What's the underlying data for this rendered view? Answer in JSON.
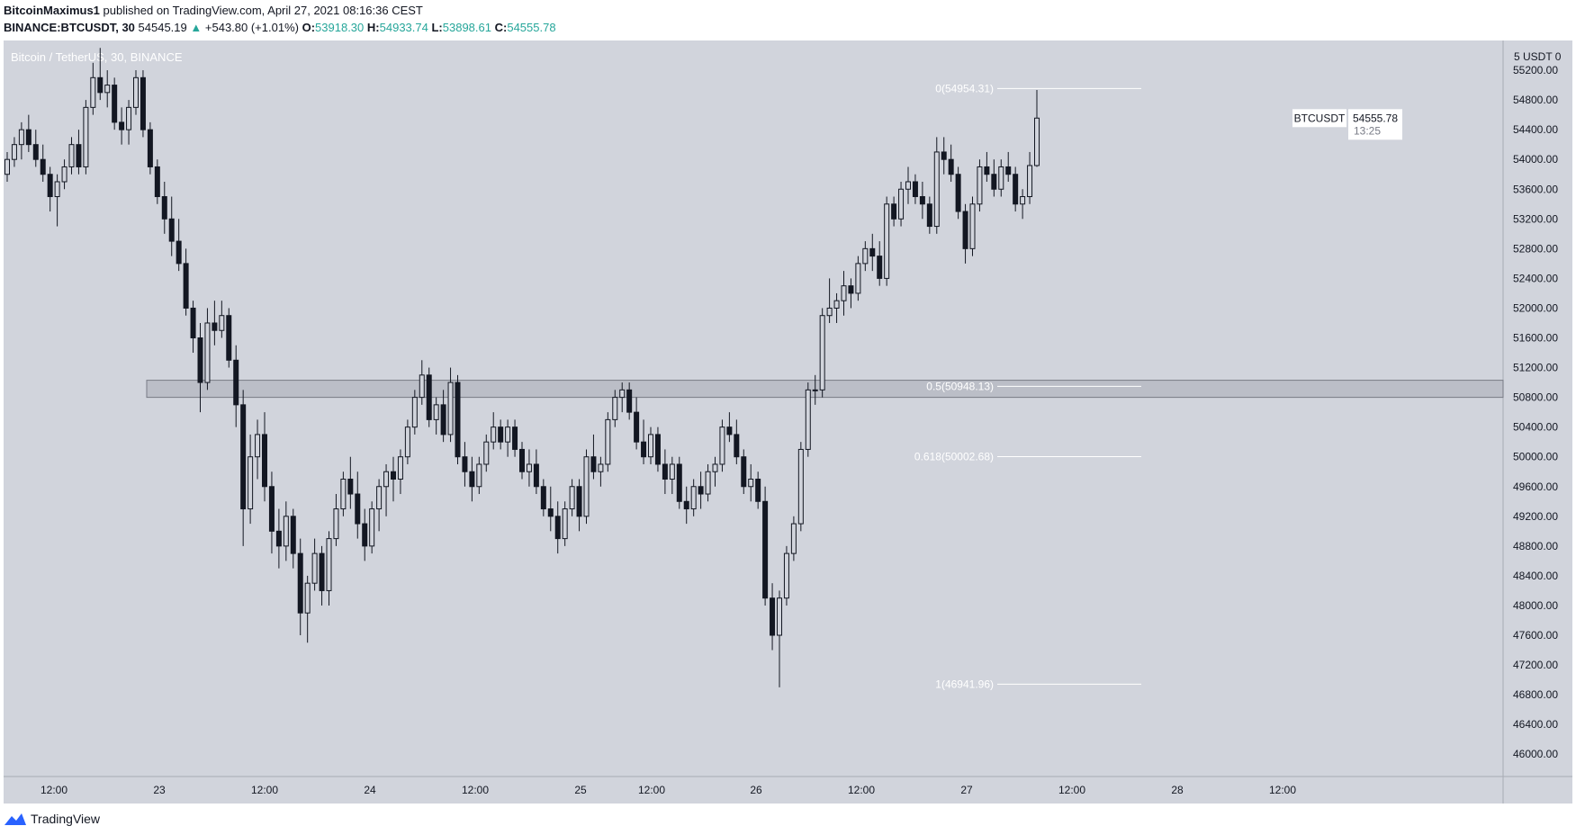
{
  "header": {
    "line1_user": "BitcoinMaximus1",
    "line1_text": "published on TradingView.com, April 27, 2021 08:16:36 CEST",
    "symbol": "BINANCE:BTCUSDT, 30",
    "last": "54545.19",
    "change_arrow": "▲",
    "change": "+543.80 (+1.01%)",
    "o_label": "O:",
    "o_val": "53918.30",
    "h_label": "H:",
    "h_val": "54933.74",
    "l_label": "L:",
    "l_val": "53898.61",
    "c_label": "C:",
    "c_val": "54555.78"
  },
  "footer": {
    "brand": "TradingView"
  },
  "colors": {
    "plot_bg": "#d1d4dc",
    "candle": "#131722",
    "up_text": "#26a69a",
    "fib_line": "#ffffff",
    "zone": "#b2b5be"
  },
  "chart_data": {
    "type": "candlestick",
    "title": "Bitcoin / TetherUS, 30, BINANCE",
    "ylim": [
      45700,
      55600
    ],
    "y_ticks": [
      46000,
      46400,
      46800,
      47200,
      47600,
      48000,
      48400,
      48800,
      49200,
      49600,
      50000,
      50400,
      50800,
      51200,
      51600,
      52000,
      52400,
      52800,
      53200,
      53600,
      54000,
      54400,
      54800,
      55200
    ],
    "y_unit_label": "5 USDT 0",
    "x_ticks": [
      "12:00",
      "23",
      "12:00",
      "24",
      "12:00",
      "25",
      "12:00",
      "26",
      "12:00",
      "27",
      "12:00",
      "28",
      "12:00"
    ],
    "last_price_label": {
      "symbol": "BTCUSDT",
      "price": "54555.78",
      "countdown": "13:25"
    },
    "fib_levels": [
      {
        "label": "0(54954.31)",
        "value": 54954.31
      },
      {
        "label": "0.5(50948.13)",
        "value": 50948.13
      },
      {
        "label": "0.618(50002.68)",
        "value": 50002.68
      },
      {
        "label": "1(46941.96)",
        "value": 46941.96
      }
    ],
    "zone": {
      "low": 50800,
      "high": 51030
    },
    "candles": [
      [
        53800,
        54100,
        53700,
        54000
      ],
      [
        54000,
        54300,
        53900,
        54200
      ],
      [
        54200,
        54500,
        54000,
        54400
      ],
      [
        54400,
        54600,
        54100,
        54200
      ],
      [
        54200,
        54400,
        53900,
        54000
      ],
      [
        54000,
        54200,
        53700,
        53800
      ],
      [
        53800,
        53900,
        53300,
        53500
      ],
      [
        53500,
        53800,
        53100,
        53700
      ],
      [
        53700,
        54000,
        53600,
        53900
      ],
      [
        53900,
        54300,
        53800,
        54200
      ],
      [
        54200,
        54400,
        53800,
        53900
      ],
      [
        53900,
        54800,
        53800,
        54700
      ],
      [
        54700,
        55300,
        54600,
        55100
      ],
      [
        55100,
        55500,
        54800,
        54900
      ],
      [
        54900,
        55200,
        54700,
        55000
      ],
      [
        55000,
        55100,
        54400,
        54500
      ],
      [
        54500,
        54700,
        54200,
        54400
      ],
      [
        54400,
        54800,
        54200,
        54700
      ],
      [
        54700,
        55200,
        54600,
        55100
      ],
      [
        55100,
        55200,
        54300,
        54400
      ],
      [
        54400,
        54500,
        53800,
        53900
      ],
      [
        53900,
        54000,
        53400,
        53500
      ],
      [
        53500,
        53700,
        53000,
        53200
      ],
      [
        53200,
        53500,
        52700,
        52900
      ],
      [
        52900,
        53200,
        52500,
        52600
      ],
      [
        52600,
        52800,
        51900,
        52000
      ],
      [
        52000,
        52100,
        51400,
        51600
      ],
      [
        51600,
        51800,
        50600,
        51000
      ],
      [
        51000,
        52000,
        50900,
        51800
      ],
      [
        51800,
        52100,
        51500,
        51700
      ],
      [
        51700,
        52100,
        51600,
        51900
      ],
      [
        51900,
        52000,
        51200,
        51300
      ],
      [
        51300,
        51500,
        50400,
        50700
      ],
      [
        50700,
        50900,
        48800,
        49300
      ],
      [
        49300,
        50300,
        49100,
        50000
      ],
      [
        50000,
        50500,
        49700,
        50300
      ],
      [
        50300,
        50600,
        49400,
        49600
      ],
      [
        49600,
        49800,
        48700,
        49000
      ],
      [
        49000,
        49300,
        48500,
        48800
      ],
      [
        48800,
        49400,
        48600,
        49200
      ],
      [
        49200,
        49300,
        48500,
        48700
      ],
      [
        48700,
        48900,
        47600,
        47900
      ],
      [
        47900,
        48400,
        47500,
        48300
      ],
      [
        48300,
        48900,
        48200,
        48700
      ],
      [
        48700,
        48800,
        48000,
        48200
      ],
      [
        48200,
        49000,
        48000,
        48900
      ],
      [
        48900,
        49500,
        48800,
        49300
      ],
      [
        49300,
        49800,
        49200,
        49700
      ],
      [
        49700,
        50000,
        49300,
        49500
      ],
      [
        49500,
        49800,
        48900,
        49100
      ],
      [
        49100,
        49300,
        48600,
        48800
      ],
      [
        48800,
        49400,
        48700,
        49300
      ],
      [
        49300,
        49700,
        49000,
        49600
      ],
      [
        49600,
        49900,
        49200,
        49800
      ],
      [
        49800,
        50000,
        49400,
        49700
      ],
      [
        49700,
        50100,
        49500,
        50000
      ],
      [
        50000,
        50500,
        49900,
        50400
      ],
      [
        50400,
        50900,
        50300,
        50800
      ],
      [
        50800,
        51300,
        50700,
        51100
      ],
      [
        51100,
        51200,
        50400,
        50500
      ],
      [
        50500,
        50800,
        50300,
        50700
      ],
      [
        50700,
        50900,
        50200,
        50300
      ],
      [
        50300,
        51200,
        50200,
        51000
      ],
      [
        51000,
        51100,
        49900,
        50000
      ],
      [
        50000,
        50200,
        49600,
        49800
      ],
      [
        49800,
        50000,
        49400,
        49600
      ],
      [
        49600,
        50000,
        49500,
        49900
      ],
      [
        49900,
        50300,
        49800,
        50200
      ],
      [
        50200,
        50600,
        50100,
        50400
      ],
      [
        50400,
        50500,
        50100,
        50200
      ],
      [
        50200,
        50500,
        50000,
        50400
      ],
      [
        50400,
        50500,
        50000,
        50100
      ],
      [
        50100,
        50200,
        49700,
        49800
      ],
      [
        49800,
        50100,
        49600,
        49900
      ],
      [
        49900,
        50100,
        49500,
        49600
      ],
      [
        49600,
        49700,
        49200,
        49300
      ],
      [
        49300,
        49600,
        49000,
        49200
      ],
      [
        49200,
        49400,
        48700,
        48900
      ],
      [
        48900,
        49400,
        48800,
        49300
      ],
      [
        49300,
        49700,
        49200,
        49600
      ],
      [
        49600,
        49700,
        49000,
        49200
      ],
      [
        49200,
        50100,
        49100,
        50000
      ],
      [
        50000,
        50300,
        49700,
        49800
      ],
      [
        49800,
        50000,
        49600,
        49900
      ],
      [
        49900,
        50600,
        49800,
        50500
      ],
      [
        50500,
        50900,
        50400,
        50800
      ],
      [
        50800,
        51000,
        50600,
        50900
      ],
      [
        50900,
        51000,
        50500,
        50600
      ],
      [
        50600,
        50800,
        50100,
        50200
      ],
      [
        50200,
        50500,
        49900,
        50000
      ],
      [
        50000,
        50400,
        49900,
        50300
      ],
      [
        50300,
        50400,
        49800,
        49900
      ],
      [
        49900,
        50100,
        49500,
        49700
      ],
      [
        49700,
        50000,
        49500,
        49900
      ],
      [
        49900,
        50000,
        49300,
        49400
      ],
      [
        49400,
        49600,
        49100,
        49300
      ],
      [
        49300,
        49700,
        49200,
        49600
      ],
      [
        49600,
        49800,
        49300,
        49500
      ],
      [
        49500,
        49900,
        49400,
        49800
      ],
      [
        49800,
        50000,
        49600,
        49900
      ],
      [
        49900,
        50500,
        49800,
        50400
      ],
      [
        50400,
        50600,
        50200,
        50300
      ],
      [
        50300,
        50500,
        49900,
        50000
      ],
      [
        50000,
        50100,
        49500,
        49600
      ],
      [
        49600,
        49900,
        49400,
        49700
      ],
      [
        49700,
        49800,
        49300,
        49400
      ],
      [
        49400,
        49600,
        48000,
        48100
      ],
      [
        48100,
        48300,
        47400,
        47600
      ],
      [
        47600,
        48200,
        46900,
        48100
      ],
      [
        48100,
        48800,
        48000,
        48700
      ],
      [
        48700,
        49200,
        48600,
        49100
      ],
      [
        49100,
        50200,
        49000,
        50100
      ],
      [
        50100,
        51000,
        50000,
        50900
      ],
      [
        50900,
        51100,
        50700,
        50900
      ],
      [
        50900,
        52000,
        50800,
        51900
      ],
      [
        51900,
        52400,
        51800,
        52000
      ],
      [
        52000,
        52200,
        51800,
        52100
      ],
      [
        52100,
        52500,
        51900,
        52300
      ],
      [
        52300,
        52400,
        52000,
        52200
      ],
      [
        52200,
        52700,
        52100,
        52600
      ],
      [
        52600,
        52900,
        52500,
        52800
      ],
      [
        52800,
        53000,
        52500,
        52700
      ],
      [
        52700,
        52900,
        52300,
        52400
      ],
      [
        52400,
        53500,
        52300,
        53400
      ],
      [
        53400,
        53500,
        53100,
        53200
      ],
      [
        53200,
        53700,
        53100,
        53600
      ],
      [
        53600,
        53900,
        53400,
        53700
      ],
      [
        53700,
        53800,
        53400,
        53500
      ],
      [
        53500,
        53700,
        53200,
        53400
      ],
      [
        53400,
        53500,
        53000,
        53100
      ],
      [
        53100,
        54300,
        53000,
        54100
      ],
      [
        54100,
        54300,
        53800,
        54000
      ],
      [
        54000,
        54200,
        53700,
        53800
      ],
      [
        53800,
        53900,
        53200,
        53300
      ],
      [
        53300,
        53400,
        52600,
        52800
      ],
      [
        52800,
        53500,
        52700,
        53400
      ],
      [
        53400,
        54000,
        53300,
        53900
      ],
      [
        53900,
        54100,
        53700,
        53800
      ],
      [
        53800,
        54000,
        53500,
        53600
      ],
      [
        53600,
        54000,
        53500,
        53900
      ],
      [
        53900,
        54100,
        53700,
        53800
      ],
      [
        53800,
        53900,
        53300,
        53400
      ],
      [
        53400,
        53600,
        53200,
        53500
      ],
      [
        53500,
        54100,
        53400,
        53918
      ],
      [
        53918,
        54934,
        53899,
        54556
      ]
    ]
  }
}
